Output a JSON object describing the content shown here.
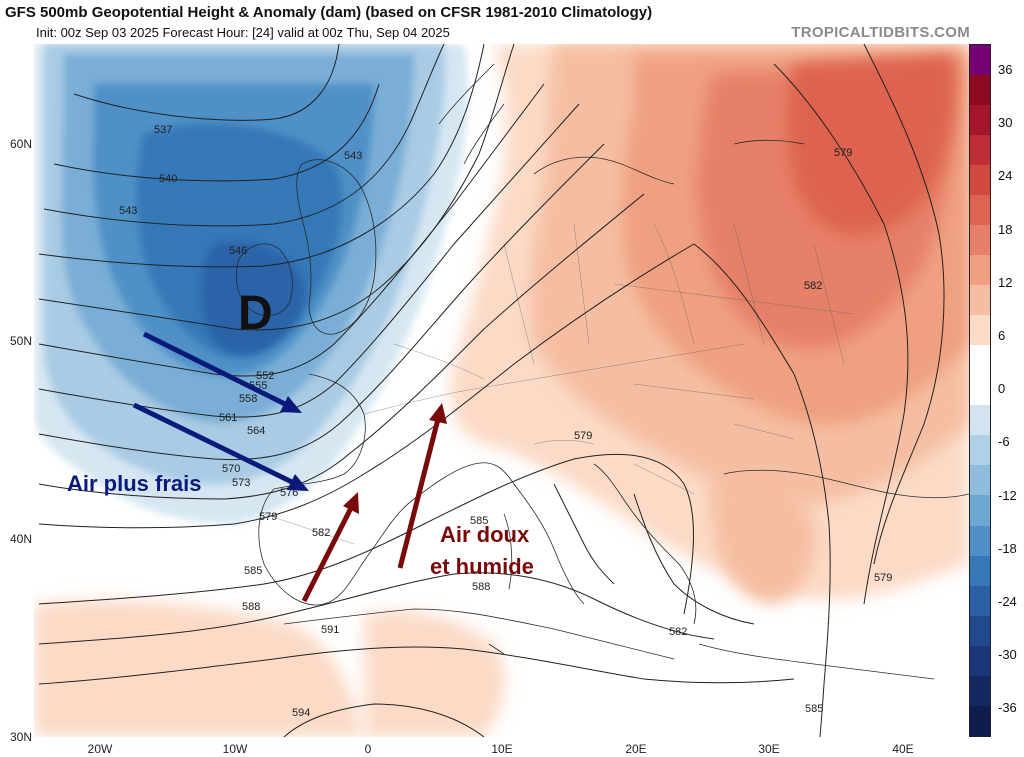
{
  "header": {
    "title": "GFS 500mb Geopotential Height & Anomaly (dam) (based on CFSR 1981-2010 Climatology)",
    "subtitle": "Init: 00z Sep 03 2025   Forecast Hour: [24]   valid at 00z Thu, Sep 04 2025",
    "credit": "TROPICALTIDBITS.COM"
  },
  "axes": {
    "lat_labels": [
      "60N",
      "50N",
      "40N",
      "30N"
    ],
    "lon_labels": [
      "20W",
      "10W",
      "0",
      "10E",
      "20E",
      "30E",
      "40E"
    ]
  },
  "colorbar": {
    "ticks": [
      "36",
      "30",
      "24",
      "18",
      "12",
      "6",
      "0",
      "-6",
      "-12",
      "-18",
      "-24",
      "-30",
      "-36"
    ],
    "colors": [
      "#770077",
      "#8b0a20",
      "#a5162c",
      "#bf2e36",
      "#d04a40",
      "#dd6450",
      "#e68068",
      "#efa080",
      "#f5bea2",
      "#fbdac6",
      "#ffffff",
      "#ffffff",
      "#d2e4f0",
      "#b0d0e6",
      "#8fbcdc",
      "#6ea6d2",
      "#5090c6",
      "#3678b8",
      "#2a60a4",
      "#224a8e",
      "#1a3878",
      "#142862",
      "#0e1c4e"
    ]
  },
  "contours": {
    "labels": [
      "537",
      "540",
      "543",
      "543",
      "546",
      "552",
      "555",
      "558",
      "561",
      "564",
      "570",
      "573",
      "576",
      "579",
      "582",
      "585",
      "585",
      "588",
      "588",
      "591",
      "594",
      "579",
      "579",
      "582",
      "582",
      "579",
      "585"
    ]
  },
  "annotations": {
    "low_marker": "D",
    "cold_air": "Air plus frais",
    "warm_air_line1": "Air doux",
    "warm_air_line2": "et humide"
  },
  "colors": {
    "cold_arrow": "#0a1a7a",
    "warm_arrow": "#7a0a0a"
  }
}
